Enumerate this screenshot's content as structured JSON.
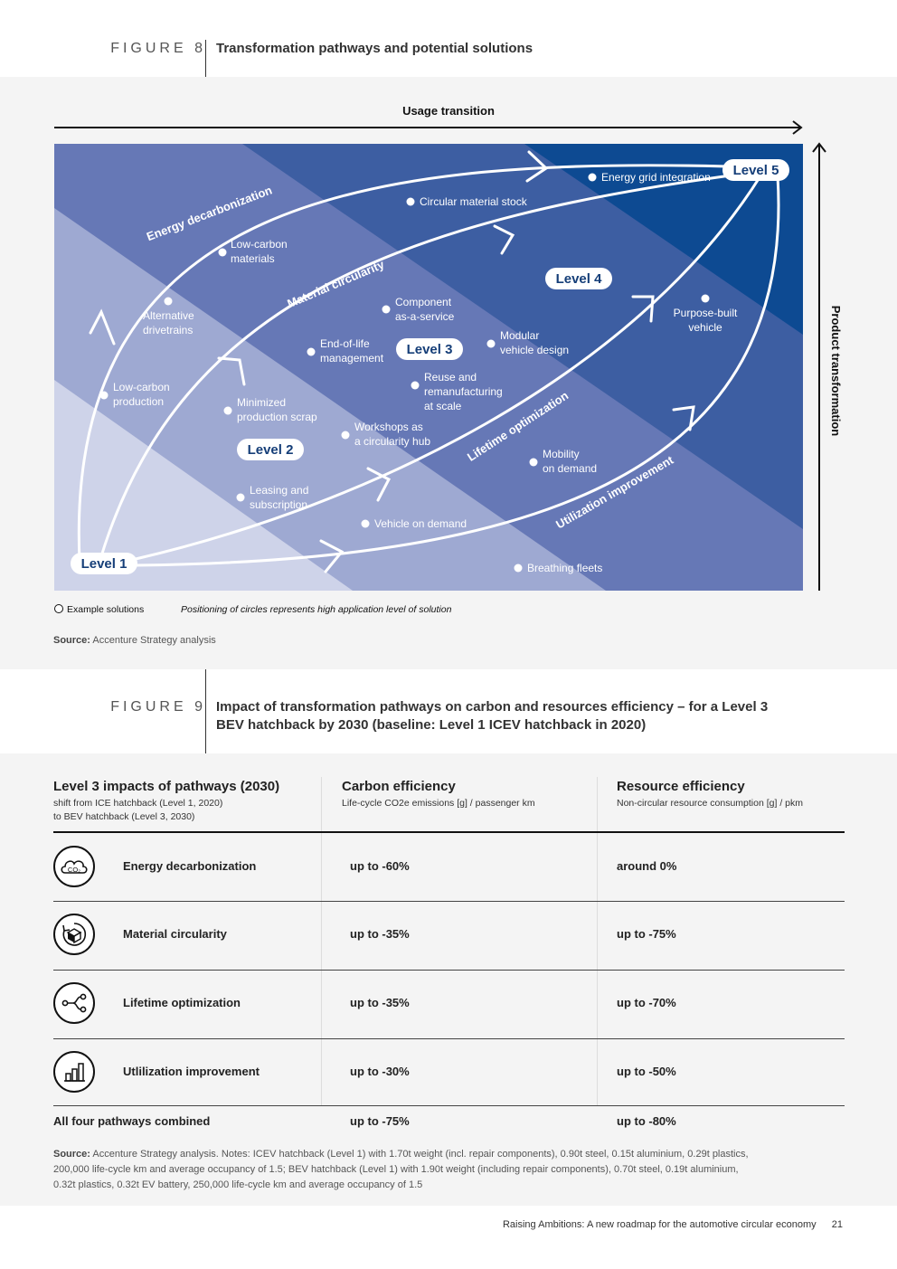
{
  "figure8": {
    "label": "FIGURE 8",
    "title": "Transformation pathways and potential solutions",
    "axis_x": "Usage transition",
    "axis_y": "Product transformation",
    "levels": [
      "Level 1",
      "Level 2",
      "Level 3",
      "Level 4",
      "Level 5"
    ],
    "pathways": [
      "Energy decarbonization",
      "Material circularity",
      "Lifetime optimization",
      "Utilization improvement"
    ],
    "solutions": [
      "Energy grid integration",
      "Circular material stock",
      "Low-carbon",
      "materials",
      "Alternative",
      "drivetrains",
      "Component",
      "as-a-service",
      "Modular",
      "vehicle design",
      "Purpose-built",
      "vehicle",
      "End-of-life",
      "management",
      "Low-carbon",
      "production",
      "Reuse and",
      "remanufacturing",
      "at scale",
      "Minimized",
      "production scrap",
      "Workshops as",
      "a circularity hub",
      "Mobility",
      "on demand",
      "Leasing and",
      "subscription",
      "Vehicle on demand",
      "Breathing fleets"
    ],
    "legend_example": "Example solutions",
    "legend_note": "Positioning of circles represents high application level of solution",
    "source_label": "Source:",
    "source_text": "Accenture Strategy analysis"
  },
  "figure9": {
    "label": "FIGURE 9",
    "title_line1": "Impact of transformation pathways on carbon and resources efficiency – for a Level 3",
    "title_line2": "BEV hatchback by 2030 (baseline: Level 1 ICEV hatchback in 2020)",
    "col1_title": "Level 3 impacts of pathways (2030)",
    "col1_sub1": "shift from ICE hatchback (Level 1, 2020)",
    "col1_sub2": "to BEV hatchback (Level 3, 2030)",
    "col2_title": "Carbon efficiency",
    "col2_sub": "Life-cycle CO2e emissions [g] / passenger km",
    "col3_title": "Resource efficiency",
    "col3_sub": "Non-circular resource consumption [g] / pkm",
    "rows": [
      {
        "icon": "co2-cloud-icon",
        "label": "Energy decarbonization",
        "carbon": "up to -60%",
        "resource": "around 0%"
      },
      {
        "icon": "recycle-box-icon",
        "label": "Material circularity",
        "carbon": "up to -35%",
        "resource": "up to -75%"
      },
      {
        "icon": "branch-path-icon",
        "label": "Lifetime optimization",
        "carbon": "up to -35%",
        "resource": "up to -70%"
      },
      {
        "icon": "bar-chart-icon",
        "label": "Utlilization improvement",
        "carbon": "up to -30%",
        "resource": "up to -50%"
      }
    ],
    "co2_text": "CO₂",
    "total_label": "All four pathways combined",
    "total_carbon": "up to -75%",
    "total_resource": "up to -80%",
    "source_label": "Source:",
    "source_line1": "Accenture Strategy analysis. Notes: ICEV hatchback (Level 1) with 1.70t weight (incl. repair components), 0.90t steel, 0.15t aluminium, 0.29t plastics,",
    "source_line2": "200,000 life-cycle km and average occupancy of 1.5; BEV hatchback (Level 1) with 1.90t weight (including repair components), 0.70t steel, 0.19t aluminium,",
    "source_line3": "0.32t plastics, 0.32t EV battery, 250,000 life-cycle km and average occupancy of 1.5"
  },
  "footer": {
    "report_title": "Raising Ambitions:",
    "report_subtitle": "A new roadmap for the automotive circular economy",
    "page_number": "21"
  }
}
